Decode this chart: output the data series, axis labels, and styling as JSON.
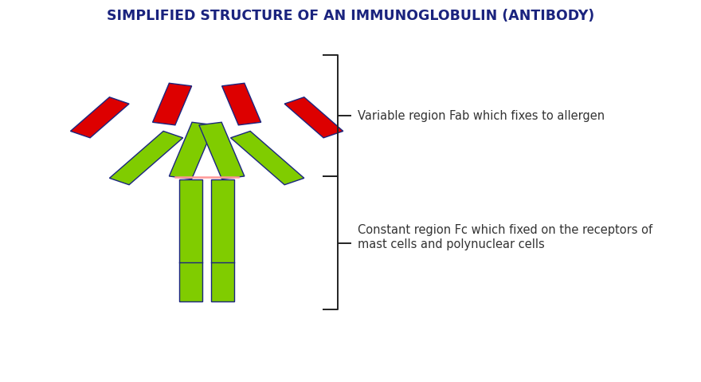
{
  "title": "SIMPLIFIED STRUCTURE OF AN IMMUNOGLOBULIN (ANTIBODY)",
  "title_color": "#1a237e",
  "title_fontsize": 12.5,
  "background_color": "#ffffff",
  "lime_green": "#80cc00",
  "red": "#dd0000",
  "dark_outline": "#1a2580",
  "pink_link": "#ff9999",
  "label1": "Variable region Fab which fixes to allergen",
  "label2": "Constant region Fc which fixed on the receptors of\nmast cells and polynuclear cells",
  "label_fontsize": 10.5,
  "label_color": "#333333",
  "bracket_color": "#222222"
}
